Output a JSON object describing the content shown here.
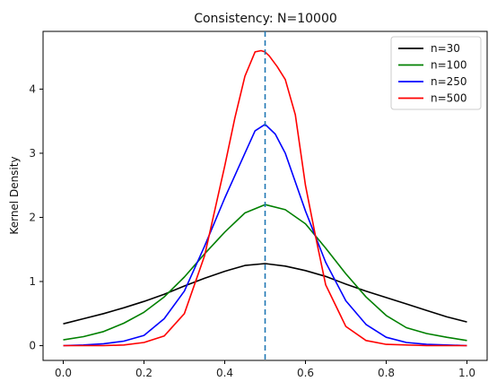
{
  "chart_data": {
    "type": "line",
    "title": "Consistency: N=10000",
    "xlabel": "",
    "ylabel": "Kernel Density",
    "xlim": [
      -0.05,
      1.05
    ],
    "ylim": [
      -0.23,
      4.9
    ],
    "xticks": [
      0.0,
      0.2,
      0.4,
      0.6,
      0.8,
      1.0
    ],
    "xtick_labels": [
      "0.0",
      "0.2",
      "0.4",
      "0.6",
      "0.8",
      "1.0"
    ],
    "yticks": [
      0,
      1,
      2,
      3,
      4
    ],
    "ytick_labels": [
      "0",
      "1",
      "2",
      "3",
      "4"
    ],
    "grid": false,
    "legend": "top-right",
    "vline": {
      "x": 0.5,
      "style": "dashed",
      "color": "#1f77b4"
    },
    "series": [
      {
        "name": "n=30",
        "color": "#000000",
        "x": [
          0.0,
          0.05,
          0.1,
          0.15,
          0.2,
          0.25,
          0.3,
          0.35,
          0.4,
          0.45,
          0.5,
          0.55,
          0.6,
          0.65,
          0.7,
          0.75,
          0.8,
          0.85,
          0.9,
          0.95,
          1.0
        ],
        "y": [
          0.34,
          0.42,
          0.5,
          0.59,
          0.69,
          0.8,
          0.93,
          1.05,
          1.16,
          1.25,
          1.28,
          1.24,
          1.17,
          1.08,
          0.96,
          0.85,
          0.75,
          0.65,
          0.55,
          0.45,
          0.37
        ]
      },
      {
        "name": "n=100",
        "color": "#008000",
        "x": [
          0.0,
          0.05,
          0.1,
          0.15,
          0.2,
          0.25,
          0.3,
          0.35,
          0.4,
          0.45,
          0.5,
          0.55,
          0.6,
          0.65,
          0.7,
          0.75,
          0.8,
          0.85,
          0.9,
          0.95,
          1.0
        ],
        "y": [
          0.09,
          0.14,
          0.22,
          0.35,
          0.52,
          0.76,
          1.07,
          1.43,
          1.77,
          2.07,
          2.2,
          2.12,
          1.9,
          1.52,
          1.12,
          0.76,
          0.47,
          0.28,
          0.19,
          0.13,
          0.08
        ]
      },
      {
        "name": "n=250",
        "color": "#0000ff",
        "x": [
          0.0,
          0.05,
          0.1,
          0.15,
          0.2,
          0.25,
          0.3,
          0.35,
          0.4,
          0.45,
          0.475,
          0.5,
          0.525,
          0.55,
          0.6,
          0.65,
          0.7,
          0.75,
          0.8,
          0.85,
          0.9,
          0.95,
          1.0
        ],
        "y": [
          0.0,
          0.01,
          0.03,
          0.07,
          0.16,
          0.42,
          0.85,
          1.55,
          2.3,
          3.0,
          3.35,
          3.45,
          3.3,
          3.0,
          2.1,
          1.3,
          0.7,
          0.33,
          0.13,
          0.05,
          0.02,
          0.01,
          0.0
        ]
      },
      {
        "name": "n=500",
        "color": "#ff0000",
        "x": [
          0.0,
          0.1,
          0.15,
          0.2,
          0.25,
          0.3,
          0.35,
          0.4,
          0.425,
          0.45,
          0.475,
          0.49,
          0.5,
          0.51,
          0.53,
          0.55,
          0.575,
          0.6,
          0.625,
          0.65,
          0.7,
          0.75,
          0.8,
          0.9,
          1.0
        ],
        "y": [
          0.0,
          0.0,
          0.01,
          0.05,
          0.15,
          0.5,
          1.4,
          2.8,
          3.55,
          4.2,
          4.58,
          4.6,
          4.58,
          4.52,
          4.35,
          4.15,
          3.6,
          2.5,
          1.7,
          0.95,
          0.3,
          0.08,
          0.02,
          0.0,
          0.0
        ]
      }
    ]
  }
}
